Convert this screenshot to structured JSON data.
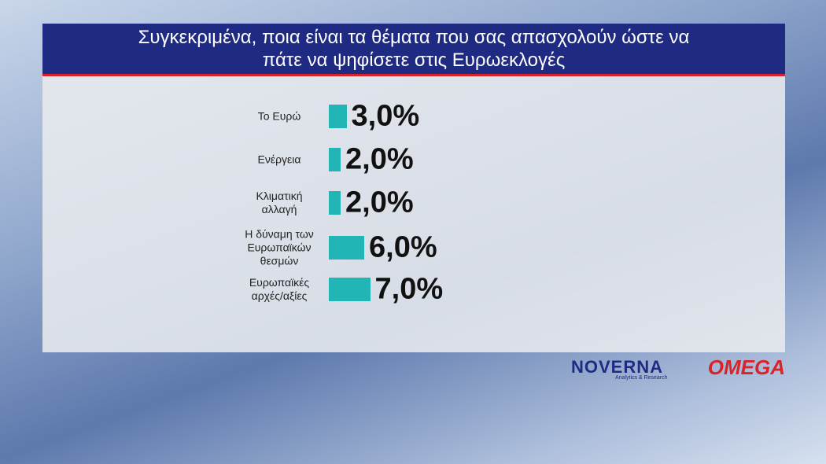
{
  "chart_data": {
    "type": "bar",
    "orientation": "horizontal",
    "title": "Συγκεκριμένα, ποια είναι τα θέματα που σας απασχολούν ώστε να πάτε να ψηφίσετε στις Ευρωεκλογές",
    "categories": [
      "Το Ευρώ",
      "Ενέργεια",
      "Κλιματική αλλαγή",
      "Η δύναμη των Ευρωπαϊκών θεσμών",
      "Ευρωπαϊκές αρχές/αξίες"
    ],
    "values": [
      3.0,
      2.0,
      2.0,
      6.0,
      7.0
    ],
    "value_labels": [
      "3,0%",
      "2,0%",
      "2,0%",
      "6,0%",
      "7,0%"
    ],
    "color": "#22b5b5"
  },
  "logos": {
    "pollster": "NOVERNA",
    "pollster_sub": "Analytics & Research",
    "channel": "OMEGA"
  }
}
